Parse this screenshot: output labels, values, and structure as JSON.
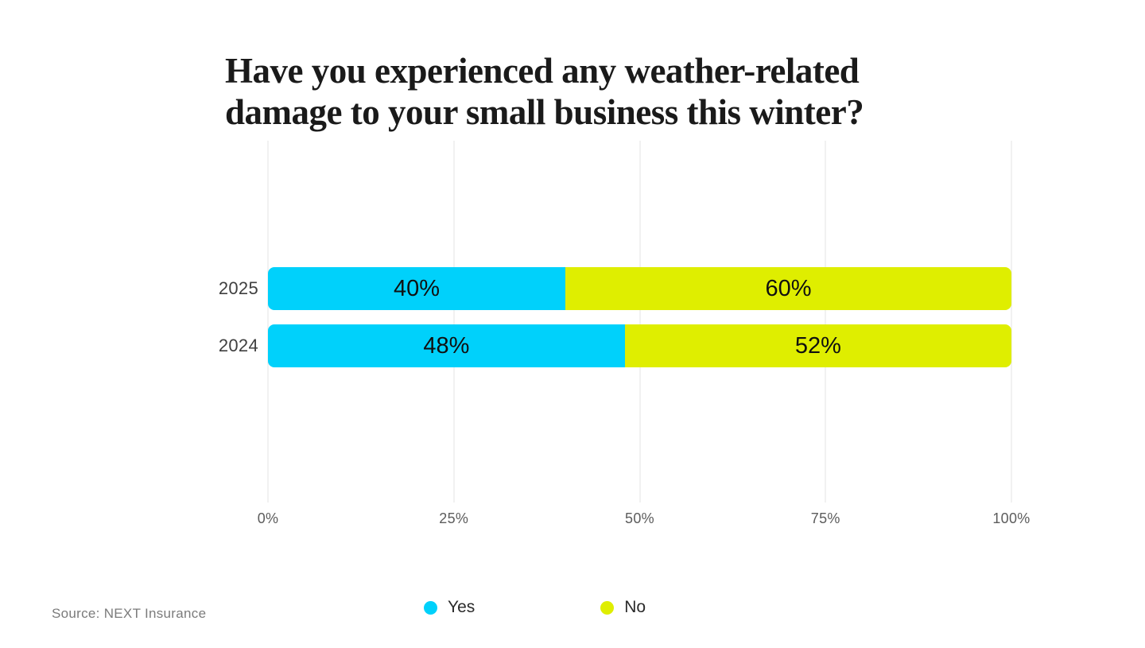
{
  "title": {
    "lines": [
      "Have you experienced any weather-related",
      "damage to your small business this winter?"
    ]
  },
  "source": {
    "text": "Source: NEXT Insurance"
  },
  "legend": [
    {
      "label": "Yes",
      "color": "#00D1FB"
    },
    {
      "label": "No",
      "color": "#DFEE00"
    }
  ],
  "chart_data": {
    "type": "bar",
    "orientation": "horizontal",
    "stacked": true,
    "categories": [
      "2025",
      "2024"
    ],
    "series": [
      {
        "name": "Yes",
        "color": "#00D1FB",
        "values": [
          40,
          48
        ]
      },
      {
        "name": "No",
        "color": "#DFEE00",
        "values": [
          60,
          52
        ]
      }
    ],
    "value_label_suffix": "%",
    "x_ticks": [
      "0%",
      "25%",
      "50%",
      "75%",
      "100%"
    ],
    "xlim": [
      0,
      100
    ],
    "grid": true,
    "legend_position": "bottom"
  }
}
